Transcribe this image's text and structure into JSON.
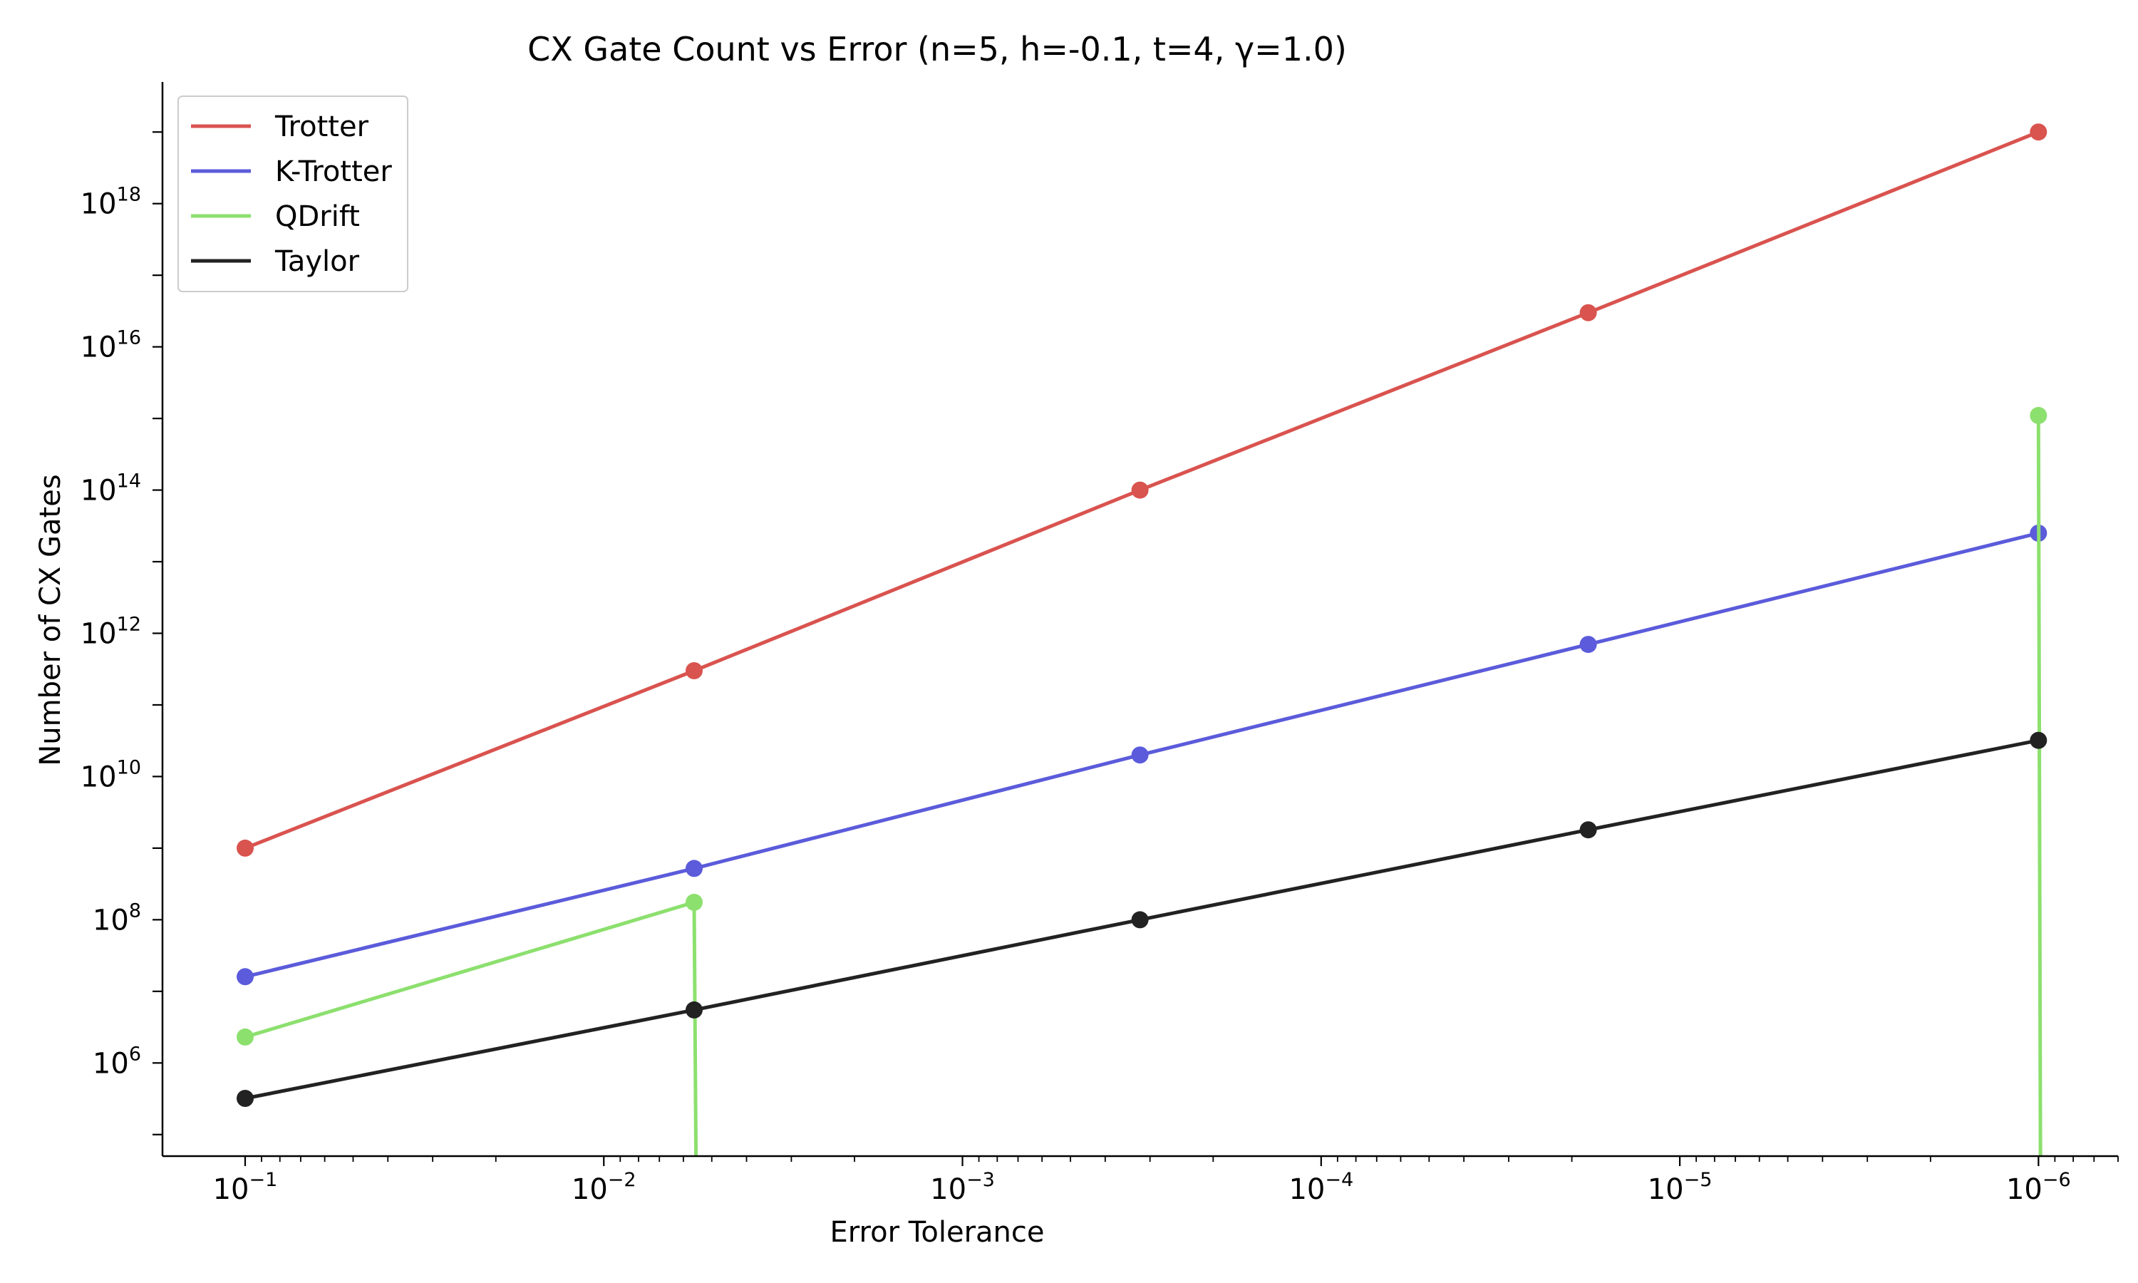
{
  "chart_data": {
    "type": "line",
    "title": "CX Gate Count vs Error (n=5, h=-0.1, t=4, γ=1.0)",
    "xlabel": "Error Tolerance",
    "ylabel": "Number of CX Gates",
    "x_scale": "log",
    "y_scale": "log",
    "x_inverted": true,
    "xlim": [
      0.17,
      6e-07
    ],
    "ylim": [
      50000.0,
      5e+19
    ],
    "x_ticks": [
      {
        "base": "10",
        "exp": "−1"
      },
      {
        "base": "10",
        "exp": "−2"
      },
      {
        "base": "10",
        "exp": "−3"
      },
      {
        "base": "10",
        "exp": "−4"
      },
      {
        "base": "10",
        "exp": "−5"
      },
      {
        "base": "10",
        "exp": "−6"
      }
    ],
    "y_ticks": [
      {
        "base": "10",
        "exp": "6"
      },
      {
        "base": "10",
        "exp": "8"
      },
      {
        "base": "10",
        "exp": "10"
      },
      {
        "base": "10",
        "exp": "12"
      },
      {
        "base": "10",
        "exp": "14"
      },
      {
        "base": "10",
        "exp": "16"
      },
      {
        "base": "10",
        "exp": "18"
      }
    ],
    "grid": false,
    "legend_position": "top-left",
    "x": [
      0.1,
      0.0056,
      0.00032,
      1.8e-05,
      1e-06
    ],
    "series": [
      {
        "name": "Trotter",
        "color": "#d9534f",
        "values": [
          1000000000.0,
          300000000000.0,
          100000000000000.0,
          3e+16,
          1e+19
        ]
      },
      {
        "name": "K-Trotter",
        "color": "#5b5bdb",
        "values": [
          16000000.0,
          520000000.0,
          20000000000.0,
          700000000000.0,
          25000000000000.0
        ]
      },
      {
        "name": "QDrift",
        "color": "#8ce06e",
        "values": [
          2300000.0,
          175000000.0,
          null,
          null,
          1100000000000000.0
        ],
        "drops": [
          {
            "from_index": 1,
            "x": 0.0056
          },
          {
            "from_index": 4,
            "x": 1e-06
          }
        ]
      },
      {
        "name": "Taylor",
        "color": "#222222",
        "values": [
          320000.0,
          5500000.0,
          100000000.0,
          1800000000.0,
          32000000000.0
        ]
      }
    ]
  }
}
